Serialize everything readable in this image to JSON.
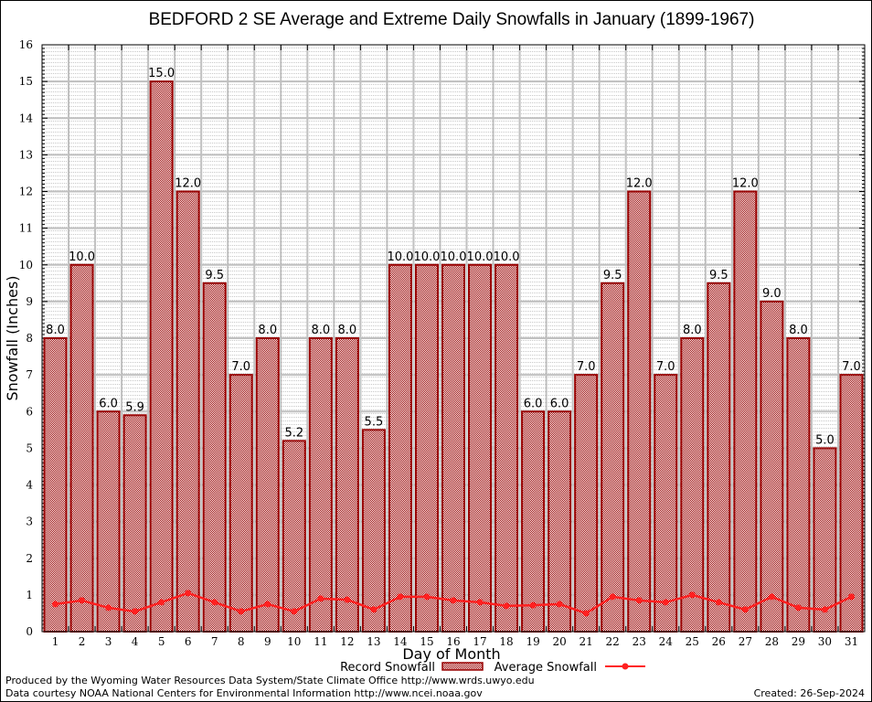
{
  "chart_data": {
    "type": "bar",
    "title": "BEDFORD 2 SE Average and Extreme Daily Snowfalls in January (1899-1967)",
    "xlabel": "Day of Month",
    "ylabel": "Snowfall (Inches)",
    "ylim": [
      0,
      16
    ],
    "yticks": [
      "0",
      "1",
      "2",
      "3",
      "4",
      "5",
      "6",
      "7",
      "8",
      "9",
      "10",
      "11",
      "12",
      "13",
      "14",
      "15",
      "16"
    ],
    "grid": true,
    "legend_position": "bottom-center",
    "categories": [
      "1",
      "2",
      "3",
      "4",
      "5",
      "6",
      "7",
      "8",
      "9",
      "10",
      "11",
      "12",
      "13",
      "14",
      "15",
      "16",
      "17",
      "18",
      "19",
      "20",
      "21",
      "22",
      "23",
      "24",
      "25",
      "26",
      "27",
      "28",
      "29",
      "30",
      "31"
    ],
    "series": [
      {
        "name": "Record Snowfall",
        "type": "bar",
        "color": "#990000",
        "values": [
          8.0,
          10.0,
          6.0,
          5.9,
          15.0,
          12.0,
          9.5,
          7.0,
          8.0,
          5.2,
          8.0,
          8.0,
          5.5,
          10.0,
          10.0,
          10.0,
          10.0,
          10.0,
          6.0,
          6.0,
          7.0,
          9.5,
          12.0,
          7.0,
          8.0,
          9.5,
          12.0,
          9.0,
          8.0,
          5.0,
          7.0
        ],
        "labels": [
          "8.0",
          "10.0",
          "6.0",
          "5.9",
          "15.0",
          "12.0",
          "9.5",
          "7.0",
          "8.0",
          "5.2",
          "8.0",
          "8.0",
          "5.5",
          "10.0",
          "10.0",
          "10.0",
          "10.0",
          "10.0",
          "6.0",
          "6.0",
          "7.0",
          "9.5",
          "12.0",
          "7.0",
          "8.0",
          "9.5",
          "12.0",
          "9.0",
          "8.0",
          "5.0",
          "7.0"
        ]
      },
      {
        "name": "Average Snowfall",
        "type": "line",
        "color": "#ff2020",
        "values": [
          0.75,
          0.85,
          0.65,
          0.55,
          0.8,
          1.05,
          0.8,
          0.55,
          0.75,
          0.55,
          0.9,
          0.87,
          0.6,
          0.95,
          0.95,
          0.85,
          0.8,
          0.7,
          0.72,
          0.75,
          0.5,
          0.95,
          0.85,
          0.8,
          1.0,
          0.8,
          0.6,
          0.95,
          0.65,
          0.6,
          0.95
        ]
      }
    ]
  },
  "footer": {
    "line1": "Produced by the Wyoming Water Resources Data System/State Climate Office http://www.wrds.uwyo.edu",
    "line2": "Data courtesy NOAA National Centers for Environmental Information http://www.ncei.noaa.gov",
    "created": "Created: 26-Sep-2024"
  }
}
